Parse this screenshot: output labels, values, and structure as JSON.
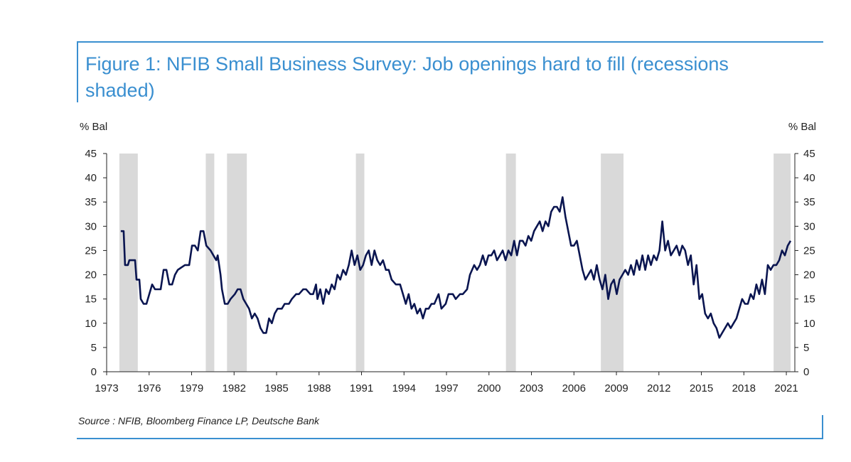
{
  "title": "Figure 1: NFIB Small Business Survey: Job openings hard to fill (recessions shaded)",
  "source": "Source : NFIB, Bloomberg Finance LP, Deutsche Bank",
  "colors": {
    "accent": "#3a8fd0",
    "line": "#0a1550",
    "recession": "#d9d9d9",
    "axis": "#222222"
  },
  "chart_data": {
    "type": "line",
    "y_left_label": "% Bal",
    "y_right_label": "% Bal",
    "ylim": [
      0,
      45
    ],
    "yticks": [
      0,
      5,
      10,
      15,
      20,
      25,
      30,
      35,
      40,
      45
    ],
    "xlim": [
      1973,
      2021.6
    ],
    "xticks": [
      1973,
      1976,
      1979,
      1982,
      1985,
      1988,
      1991,
      1994,
      1997,
      2000,
      2003,
      2006,
      2009,
      2012,
      2015,
      2018,
      2021
    ],
    "grid": false,
    "recessions": [
      [
        1973.9,
        1975.2
      ],
      [
        1980.0,
        1980.6
      ],
      [
        1981.5,
        1982.9
      ],
      [
        1990.6,
        1991.2
      ],
      [
        2001.2,
        2001.9
      ],
      [
        2007.9,
        2009.5
      ],
      [
        2020.1,
        2021.3
      ]
    ],
    "series": [
      {
        "values": [
          [
            1974.0,
            29
          ],
          [
            1974.2,
            29
          ],
          [
            1974.3,
            22
          ],
          [
            1974.5,
            22
          ],
          [
            1974.6,
            23
          ],
          [
            1975.0,
            23
          ],
          [
            1975.1,
            19
          ],
          [
            1975.3,
            19
          ],
          [
            1975.4,
            15
          ],
          [
            1975.6,
            14
          ],
          [
            1975.8,
            14
          ],
          [
            1976.0,
            16
          ],
          [
            1976.2,
            18
          ],
          [
            1976.4,
            17
          ],
          [
            1976.8,
            17
          ],
          [
            1977.0,
            21
          ],
          [
            1977.2,
            21
          ],
          [
            1977.4,
            18
          ],
          [
            1977.6,
            18
          ],
          [
            1977.8,
            20
          ],
          [
            1978.0,
            21
          ],
          [
            1978.5,
            22
          ],
          [
            1978.8,
            22
          ],
          [
            1979.0,
            26
          ],
          [
            1979.2,
            26
          ],
          [
            1979.4,
            25
          ],
          [
            1979.6,
            29
          ],
          [
            1979.8,
            29
          ],
          [
            1980.0,
            26
          ],
          [
            1980.3,
            25
          ],
          [
            1980.5,
            24
          ],
          [
            1980.7,
            23
          ],
          [
            1980.8,
            24
          ],
          [
            1981.0,
            20
          ],
          [
            1981.1,
            17
          ],
          [
            1981.3,
            14
          ],
          [
            1981.5,
            14
          ],
          [
            1981.7,
            15
          ],
          [
            1982.0,
            16
          ],
          [
            1982.2,
            17
          ],
          [
            1982.4,
            17
          ],
          [
            1982.6,
            15
          ],
          [
            1982.8,
            14
          ],
          [
            1983.0,
            13
          ],
          [
            1983.2,
            11
          ],
          [
            1983.4,
            12
          ],
          [
            1983.6,
            11
          ],
          [
            1983.8,
            9
          ],
          [
            1984.0,
            8
          ],
          [
            1984.2,
            8
          ],
          [
            1984.4,
            11
          ],
          [
            1984.6,
            10
          ],
          [
            1984.8,
            12
          ],
          [
            1985.0,
            13
          ],
          [
            1985.3,
            13
          ],
          [
            1985.5,
            14
          ],
          [
            1985.8,
            14
          ],
          [
            1986.0,
            15
          ],
          [
            1986.3,
            16
          ],
          [
            1986.5,
            16
          ],
          [
            1986.8,
            17
          ],
          [
            1987.0,
            17
          ],
          [
            1987.3,
            16
          ],
          [
            1987.5,
            16
          ],
          [
            1987.7,
            18
          ],
          [
            1987.8,
            15
          ],
          [
            1988.0,
            17
          ],
          [
            1988.2,
            14
          ],
          [
            1988.4,
            17
          ],
          [
            1988.6,
            16
          ],
          [
            1988.8,
            18
          ],
          [
            1989.0,
            17
          ],
          [
            1989.2,
            20
          ],
          [
            1989.4,
            19
          ],
          [
            1989.6,
            21
          ],
          [
            1989.8,
            20
          ],
          [
            1990.0,
            22
          ],
          [
            1990.2,
            25
          ],
          [
            1990.4,
            22
          ],
          [
            1990.6,
            24
          ],
          [
            1990.8,
            21
          ],
          [
            1991.0,
            22
          ],
          [
            1991.2,
            24
          ],
          [
            1991.4,
            25
          ],
          [
            1991.6,
            22
          ],
          [
            1991.8,
            25
          ],
          [
            1992.0,
            23
          ],
          [
            1992.2,
            22
          ],
          [
            1992.4,
            23
          ],
          [
            1992.6,
            21
          ],
          [
            1992.8,
            21
          ],
          [
            1993.0,
            19
          ],
          [
            1993.3,
            18
          ],
          [
            1993.6,
            18
          ],
          [
            1993.8,
            16
          ],
          [
            1994.0,
            14
          ],
          [
            1994.2,
            16
          ],
          [
            1994.4,
            13
          ],
          [
            1994.6,
            14
          ],
          [
            1994.8,
            12
          ],
          [
            1995.0,
            13
          ],
          [
            1995.2,
            11
          ],
          [
            1995.4,
            13
          ],
          [
            1995.6,
            13
          ],
          [
            1995.8,
            14
          ],
          [
            1996.0,
            14
          ],
          [
            1996.3,
            16
          ],
          [
            1996.5,
            13
          ],
          [
            1996.8,
            14
          ],
          [
            1997.0,
            16
          ],
          [
            1997.3,
            16
          ],
          [
            1997.5,
            15
          ],
          [
            1997.8,
            16
          ],
          [
            1998.0,
            16
          ],
          [
            1998.3,
            17
          ],
          [
            1998.5,
            20
          ],
          [
            1998.8,
            22
          ],
          [
            1999.0,
            21
          ],
          [
            1999.2,
            22
          ],
          [
            1999.4,
            24
          ],
          [
            1999.6,
            22
          ],
          [
            1999.8,
            24
          ],
          [
            2000.0,
            24
          ],
          [
            2000.2,
            25
          ],
          [
            2000.4,
            23
          ],
          [
            2000.6,
            24
          ],
          [
            2000.8,
            25
          ],
          [
            2001.0,
            23
          ],
          [
            2001.2,
            25
          ],
          [
            2001.4,
            24
          ],
          [
            2001.6,
            27
          ],
          [
            2001.8,
            24
          ],
          [
            2002.0,
            27
          ],
          [
            2002.2,
            27
          ],
          [
            2002.4,
            26
          ],
          [
            2002.6,
            28
          ],
          [
            2002.8,
            27
          ],
          [
            2003.0,
            29
          ],
          [
            2003.2,
            30
          ],
          [
            2003.4,
            31
          ],
          [
            2003.6,
            29
          ],
          [
            2003.8,
            31
          ],
          [
            2004.0,
            30
          ],
          [
            2004.2,
            33
          ],
          [
            2004.4,
            34
          ],
          [
            2004.6,
            34
          ],
          [
            2004.8,
            33
          ],
          [
            2005.0,
            36
          ],
          [
            2005.2,
            32
          ],
          [
            2005.4,
            29
          ],
          [
            2005.6,
            26
          ],
          [
            2005.8,
            26
          ],
          [
            2006.0,
            27
          ],
          [
            2006.2,
            24
          ],
          [
            2006.4,
            21
          ],
          [
            2006.6,
            19
          ],
          [
            2006.8,
            20
          ],
          [
            2007.0,
            21
          ],
          [
            2007.2,
            19
          ],
          [
            2007.4,
            22
          ],
          [
            2007.6,
            19
          ],
          [
            2007.8,
            17
          ],
          [
            2008.0,
            20
          ],
          [
            2008.2,
            15
          ],
          [
            2008.4,
            18
          ],
          [
            2008.6,
            19
          ],
          [
            2008.8,
            16
          ],
          [
            2009.0,
            19
          ],
          [
            2009.2,
            20
          ],
          [
            2009.4,
            21
          ],
          [
            2009.6,
            20
          ],
          [
            2009.8,
            22
          ],
          [
            2010.0,
            20
          ],
          [
            2010.2,
            23
          ],
          [
            2010.4,
            21
          ],
          [
            2010.6,
            24
          ],
          [
            2010.8,
            21
          ],
          [
            2011.0,
            24
          ],
          [
            2011.2,
            22
          ],
          [
            2011.4,
            24
          ],
          [
            2011.6,
            23
          ],
          [
            2011.8,
            25
          ],
          [
            2012.0,
            31
          ],
          [
            2012.2,
            25
          ],
          [
            2012.4,
            27
          ],
          [
            2012.6,
            24
          ],
          [
            2012.8,
            25
          ],
          [
            2013.0,
            26
          ],
          [
            2013.2,
            24
          ],
          [
            2013.4,
            26
          ],
          [
            2013.6,
            25
          ],
          [
            2013.8,
            22
          ],
          [
            2014.0,
            24
          ],
          [
            2014.2,
            18
          ],
          [
            2014.4,
            22
          ],
          [
            2014.6,
            15
          ],
          [
            2014.8,
            16
          ],
          [
            2015.0,
            12
          ],
          [
            2015.2,
            11
          ],
          [
            2015.4,
            12
          ],
          [
            2015.6,
            10
          ],
          [
            2015.8,
            9
          ],
          [
            2016.0,
            7
          ],
          [
            2016.2,
            8
          ],
          [
            2016.4,
            9
          ],
          [
            2016.6,
            10
          ],
          [
            2016.8,
            9
          ],
          [
            2017.0,
            10
          ],
          [
            2017.2,
            11
          ],
          [
            2017.4,
            13
          ],
          [
            2017.6,
            15
          ],
          [
            2017.8,
            14
          ],
          [
            2018.0,
            14
          ],
          [
            2018.2,
            16
          ],
          [
            2018.4,
            15
          ],
          [
            2018.6,
            18
          ],
          [
            2018.8,
            16
          ],
          [
            2019.0,
            19
          ],
          [
            2019.2,
            16
          ],
          [
            2019.4,
            22
          ],
          [
            2019.6,
            21
          ],
          [
            2019.8,
            22
          ],
          [
            2020.0,
            22
          ],
          [
            2020.2,
            23
          ],
          [
            2020.4,
            25
          ],
          [
            2020.6,
            24
          ],
          [
            2020.8,
            26
          ],
          [
            2021.0,
            27
          ]
        ]
      }
    ]
  }
}
